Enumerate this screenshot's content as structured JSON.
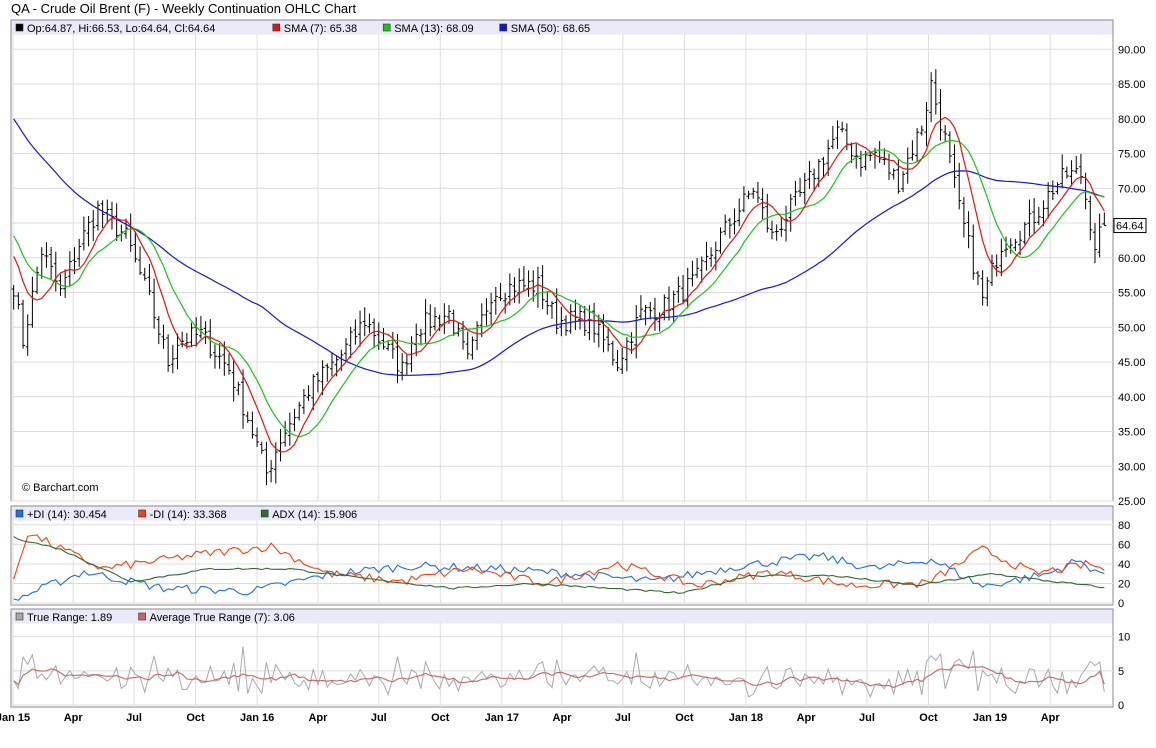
{
  "title": "QA - Crude Oil Brent (F) - Weekly Continuation OHLC Chart",
  "copyright": "© Barchart.com",
  "last_price_label": "64.64",
  "colors": {
    "price_bar": "#000000",
    "sma7": "#e8120f",
    "sma13": "#14c814",
    "sma50": "#1414dc",
    "plus_di": "#1e6ee6",
    "minus_di": "#f0420f",
    "adx": "#2f6b2f",
    "true_range": "#a8a8a8",
    "atr": "#c86464",
    "legend_bg": "#e9e9f7",
    "grid": "#dcdcdc"
  },
  "x_axis": {
    "labels": [
      "Jan 15",
      "Apr",
      "Jul",
      "Oct",
      "Jan 16",
      "Apr",
      "Jul",
      "Oct",
      "Jan 17",
      "Apr",
      "Jul",
      "Oct",
      "Jan 18",
      "Apr",
      "Jul",
      "Oct",
      "Jan 19",
      "Apr"
    ]
  },
  "panels": {
    "price": {
      "legend": [
        "Op:64.87, Hi:66.53, Lo:64.64, Cl:64.64",
        "SMA (7): 65.38",
        "SMA (13): 68.09",
        "SMA (50): 68.65"
      ],
      "y_ticks": [
        "25.00",
        "30.00",
        "35.00",
        "40.00",
        "45.00",
        "50.00",
        "55.00",
        "60.00",
        "65.00",
        "70.00",
        "75.00",
        "80.00",
        "85.00",
        "90.00"
      ]
    },
    "dmi": {
      "legend": [
        "+DI (14): 30.454",
        "-DI (14): 33.368",
        "ADX (14): 15.906"
      ],
      "y_ticks": [
        "0",
        "20",
        "40",
        "60",
        "80"
      ]
    },
    "tr": {
      "legend": [
        "True Range: 1.89",
        "Average True Range (7): 3.06"
      ],
      "y_ticks": [
        "0",
        "5",
        "10"
      ]
    }
  },
  "chart_data": [
    {
      "type": "ohlc",
      "title": "QA - Crude Oil Brent (F) - Weekly Continuation OHLC Chart",
      "period": "weekly",
      "ylim": [
        25,
        90
      ],
      "last": {
        "open": 64.87,
        "high": 66.53,
        "low": 64.64,
        "close": 64.64
      },
      "close_anchors": [
        {
          "date": "2015-01-02",
          "close": 56
        },
        {
          "date": "2015-01-16",
          "close": 48
        },
        {
          "date": "2015-02-13",
          "close": 61
        },
        {
          "date": "2015-03-13",
          "close": 55
        },
        {
          "date": "2015-04-10",
          "close": 62
        },
        {
          "date": "2015-05-08",
          "close": 67
        },
        {
          "date": "2015-06-19",
          "close": 63
        },
        {
          "date": "2015-07-24",
          "close": 54
        },
        {
          "date": "2015-08-21",
          "close": 45
        },
        {
          "date": "2015-09-04",
          "close": 48
        },
        {
          "date": "2015-10-09",
          "close": 49
        },
        {
          "date": "2015-11-20",
          "close": 44
        },
        {
          "date": "2015-12-18",
          "close": 37
        },
        {
          "date": "2016-01-15",
          "close": 29
        },
        {
          "date": "2016-02-05",
          "close": 34
        },
        {
          "date": "2016-03-18",
          "close": 41
        },
        {
          "date": "2016-05-06",
          "close": 46
        },
        {
          "date": "2016-06-10",
          "close": 51
        },
        {
          "date": "2016-08-05",
          "close": 44
        },
        {
          "date": "2016-08-26",
          "close": 50
        },
        {
          "date": "2016-10-14",
          "close": 52
        },
        {
          "date": "2016-11-11",
          "close": 45
        },
        {
          "date": "2016-12-16",
          "close": 55
        },
        {
          "date": "2017-01-20",
          "close": 56
        },
        {
          "date": "2017-02-24",
          "close": 56
        },
        {
          "date": "2017-03-24",
          "close": 51
        },
        {
          "date": "2017-05-12",
          "close": 51
        },
        {
          "date": "2017-06-23",
          "close": 45
        },
        {
          "date": "2017-07-28",
          "close": 52
        },
        {
          "date": "2017-09-01",
          "close": 53
        },
        {
          "date": "2017-10-20",
          "close": 57
        },
        {
          "date": "2017-11-24",
          "close": 63
        },
        {
          "date": "2018-01-12",
          "close": 70
        },
        {
          "date": "2018-02-09",
          "close": 63
        },
        {
          "date": "2018-03-30",
          "close": 70
        },
        {
          "date": "2018-05-18",
          "close": 78
        },
        {
          "date": "2018-06-22",
          "close": 74
        },
        {
          "date": "2018-07-13",
          "close": 75
        },
        {
          "date": "2018-08-17",
          "close": 71
        },
        {
          "date": "2018-09-21",
          "close": 79
        },
        {
          "date": "2018-10-05",
          "close": 85
        },
        {
          "date": "2018-10-26",
          "close": 77
        },
        {
          "date": "2018-11-16",
          "close": 67
        },
        {
          "date": "2018-12-21",
          "close": 54
        },
        {
          "date": "2019-01-18",
          "close": 62
        },
        {
          "date": "2019-03-01",
          "close": 65
        },
        {
          "date": "2019-04-05",
          "close": 70
        },
        {
          "date": "2019-04-26",
          "close": 72
        },
        {
          "date": "2019-05-17",
          "close": 72
        },
        {
          "date": "2019-06-07",
          "close": 62
        },
        {
          "date": "2019-06-21",
          "close": 65
        }
      ],
      "series": [
        {
          "name": "SMA (7)",
          "last": 65.38
        },
        {
          "name": "SMA (13)",
          "last": 68.09
        },
        {
          "name": "SMA (50)",
          "last": 68.65
        }
      ]
    },
    {
      "type": "line",
      "ylim": [
        0,
        85
      ],
      "series": [
        {
          "name": "+DI (14)",
          "last": 30.454,
          "anchors": [
            {
              "date": "2015-01-02",
              "value": 3
            },
            {
              "date": "2015-04-17",
              "value": 32
            },
            {
              "date": "2015-08-14",
              "value": 15
            },
            {
              "date": "2015-12-25",
              "value": 12
            },
            {
              "date": "2016-04-22",
              "value": 30
            },
            {
              "date": "2016-08-19",
              "value": 38
            },
            {
              "date": "2016-12-23",
              "value": 35
            },
            {
              "date": "2017-04-14",
              "value": 30
            },
            {
              "date": "2017-08-18",
              "value": 22
            },
            {
              "date": "2017-12-22",
              "value": 38
            },
            {
              "date": "2018-04-20",
              "value": 48
            },
            {
              "date": "2018-07-13",
              "value": 35
            },
            {
              "date": "2018-10-05",
              "value": 45
            },
            {
              "date": "2018-12-21",
              "value": 17
            },
            {
              "date": "2019-03-29",
              "value": 30
            },
            {
              "date": "2019-05-10",
              "value": 43
            },
            {
              "date": "2019-06-21",
              "value": 30
            }
          ]
        },
        {
          "name": "-DI (14)",
          "last": 33.368,
          "anchors": [
            {
              "date": "2015-01-02",
              "value": 25
            },
            {
              "date": "2015-01-23",
              "value": 72
            },
            {
              "date": "2015-05-15",
              "value": 35
            },
            {
              "date": "2015-10-09",
              "value": 50
            },
            {
              "date": "2016-01-22",
              "value": 58
            },
            {
              "date": "2016-04-15",
              "value": 30
            },
            {
              "date": "2016-08-05",
              "value": 22
            },
            {
              "date": "2016-11-11",
              "value": 35
            },
            {
              "date": "2017-03-10",
              "value": 20
            },
            {
              "date": "2017-06-23",
              "value": 40
            },
            {
              "date": "2017-10-20",
              "value": 18
            },
            {
              "date": "2018-02-09",
              "value": 32
            },
            {
              "date": "2018-06-08",
              "value": 18
            },
            {
              "date": "2018-09-28",
              "value": 20
            },
            {
              "date": "2018-12-21",
              "value": 55
            },
            {
              "date": "2019-03-08",
              "value": 30
            },
            {
              "date": "2019-05-31",
              "value": 40
            },
            {
              "date": "2019-06-21",
              "value": 33
            }
          ]
        },
        {
          "name": "ADX (14)",
          "last": 15.906,
          "anchors": [
            {
              "date": "2015-01-02",
              "value": 67
            },
            {
              "date": "2015-03-13",
              "value": 55
            },
            {
              "date": "2015-06-26",
              "value": 22
            },
            {
              "date": "2015-10-23",
              "value": 35
            },
            {
              "date": "2016-02-19",
              "value": 35
            },
            {
              "date": "2016-06-10",
              "value": 25
            },
            {
              "date": "2016-10-21",
              "value": 15
            },
            {
              "date": "2017-02-17",
              "value": 20
            },
            {
              "date": "2017-06-09",
              "value": 15
            },
            {
              "date": "2017-09-29",
              "value": 10
            },
            {
              "date": "2018-01-05",
              "value": 28
            },
            {
              "date": "2018-05-11",
              "value": 28
            },
            {
              "date": "2018-09-14",
              "value": 18
            },
            {
              "date": "2019-01-04",
              "value": 30
            },
            {
              "date": "2019-04-05",
              "value": 22
            },
            {
              "date": "2019-06-21",
              "value": 16
            }
          ]
        }
      ]
    },
    {
      "type": "line",
      "ylim": [
        0,
        12
      ],
      "series": [
        {
          "name": "True Range",
          "last": 1.89
        },
        {
          "name": "Average True Range (7)",
          "last": 3.06
        }
      ]
    }
  ]
}
